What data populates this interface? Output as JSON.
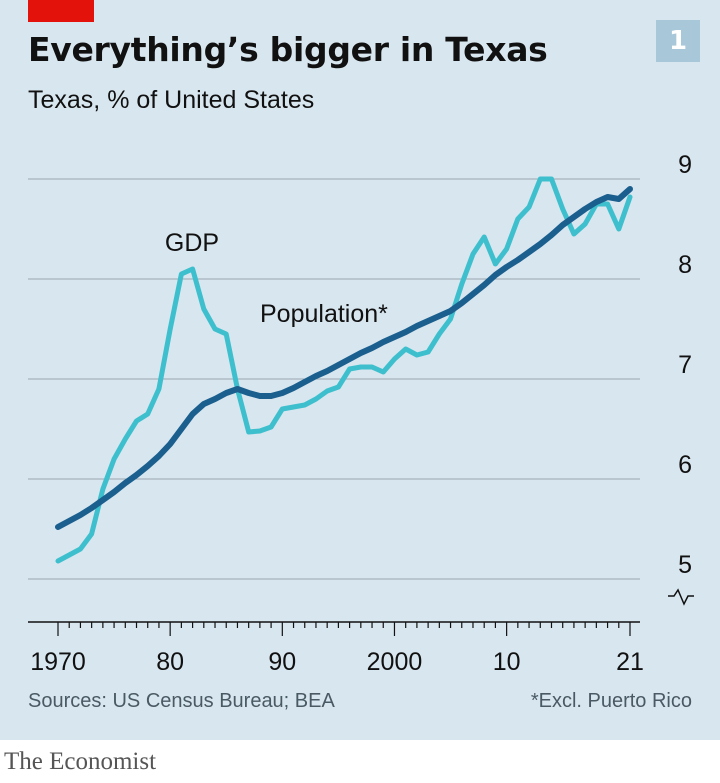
{
  "header": {
    "title": "Everything’s bigger in Texas",
    "subtitle": "Texas, % of United States",
    "chart_number": "1"
  },
  "footer": {
    "source": "Sources: US Census Bureau; BEA",
    "footnote": "*Excl. Puerto Rico",
    "brand": "The Economist"
  },
  "colors": {
    "panel_background": "#d8e6ef",
    "accent_tag": "#e3120b",
    "gdp_line": "#3ebfcd",
    "population_line": "#1a5f8e",
    "gridline": "#9aa7b0",
    "axis": "#111111"
  },
  "chart_data": {
    "type": "line",
    "title": "Everything’s bigger in Texas",
    "subtitle": "Texas, % of United States",
    "x": [
      1970,
      1971,
      1972,
      1973,
      1974,
      1975,
      1976,
      1977,
      1978,
      1979,
      1980,
      1981,
      1982,
      1983,
      1984,
      1985,
      1986,
      1987,
      1988,
      1989,
      1990,
      1991,
      1992,
      1993,
      1994,
      1995,
      1996,
      1997,
      1998,
      1999,
      2000,
      2001,
      2002,
      2003,
      2004,
      2005,
      2006,
      2007,
      2008,
      2009,
      2010,
      2011,
      2012,
      2013,
      2014,
      2015,
      2016,
      2017,
      2018,
      2019,
      2020,
      2021
    ],
    "x_tick_values": [
      1970,
      1980,
      1990,
      2000,
      2010,
      2021
    ],
    "x_tick_labels": [
      "1970",
      "80",
      "90",
      "2000",
      "10",
      "21"
    ],
    "y_ticks": [
      5,
      6,
      7,
      8,
      9
    ],
    "ylim": [
      4.5,
      9.2
    ],
    "y_axis_break": true,
    "grid": true,
    "series": [
      {
        "name": "GDP",
        "values": [
          5.18,
          5.24,
          5.3,
          5.45,
          5.9,
          6.2,
          6.4,
          6.58,
          6.65,
          6.9,
          7.5,
          8.05,
          8.1,
          7.7,
          7.5,
          7.45,
          6.9,
          6.47,
          6.48,
          6.52,
          6.7,
          6.72,
          6.74,
          6.8,
          6.88,
          6.92,
          7.1,
          7.12,
          7.12,
          7.07,
          7.2,
          7.3,
          7.24,
          7.27,
          7.45,
          7.6,
          7.95,
          8.25,
          8.42,
          8.15,
          8.3,
          8.6,
          8.72,
          9.0,
          9.0,
          8.7,
          8.45,
          8.55,
          8.75,
          8.75,
          8.5,
          8.82
        ]
      },
      {
        "name": "Population*",
        "values": [
          5.52,
          5.58,
          5.64,
          5.71,
          5.79,
          5.87,
          5.96,
          6.04,
          6.13,
          6.23,
          6.35,
          6.5,
          6.65,
          6.75,
          6.8,
          6.86,
          6.9,
          6.86,
          6.83,
          6.83,
          6.86,
          6.91,
          6.97,
          7.03,
          7.08,
          7.14,
          7.2,
          7.26,
          7.31,
          7.37,
          7.42,
          7.47,
          7.53,
          7.58,
          7.63,
          7.68,
          7.76,
          7.85,
          7.94,
          8.04,
          8.12,
          8.19,
          8.27,
          8.35,
          8.44,
          8.54,
          8.62,
          8.7,
          8.77,
          8.82,
          8.8,
          8.9
        ]
      }
    ],
    "series_labels": [
      "GDP",
      "Population*"
    ]
  }
}
